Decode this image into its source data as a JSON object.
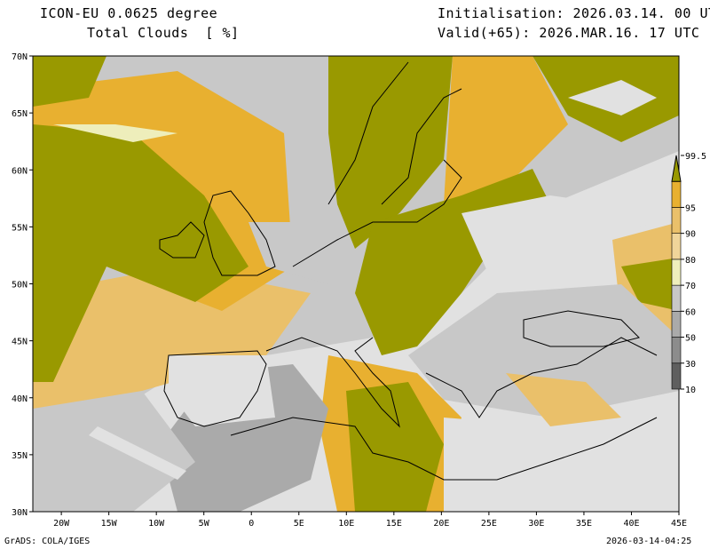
{
  "header": {
    "model": "ICON-EU 0.0625 degree",
    "variable": "Total Clouds  [ %]",
    "init": "Initialisation: 2026.03.14. 00 UTC",
    "valid": "Valid(+65): 2026.MAR.16. 17 UTC"
  },
  "axes": {
    "lon_ticks": [
      {
        "v": -20,
        "l": "20W"
      },
      {
        "v": -15,
        "l": "15W"
      },
      {
        "v": -10,
        "l": "10W"
      },
      {
        "v": -5,
        "l": "5W"
      },
      {
        "v": 0,
        "l": "0"
      },
      {
        "v": 5,
        "l": "5E"
      },
      {
        "v": 10,
        "l": "10E"
      },
      {
        "v": 15,
        "l": "15E"
      },
      {
        "v": 20,
        "l": "20E"
      },
      {
        "v": 25,
        "l": "25E"
      },
      {
        "v": 30,
        "l": "30E"
      },
      {
        "v": 35,
        "l": "35E"
      },
      {
        "v": 40,
        "l": "40E"
      },
      {
        "v": 45,
        "l": "45E"
      }
    ],
    "lat_ticks": [
      {
        "v": 30,
        "l": "30N"
      },
      {
        "v": 35,
        "l": "35N"
      },
      {
        "v": 40,
        "l": "40N"
      },
      {
        "v": 45,
        "l": "45N"
      },
      {
        "v": 50,
        "l": "50N"
      },
      {
        "v": 55,
        "l": "55N"
      },
      {
        "v": 60,
        "l": "60N"
      },
      {
        "v": 65,
        "l": "65N"
      },
      {
        "v": 70,
        "l": "70N"
      }
    ],
    "lon_range": [
      -23,
      45
    ],
    "lat_range": [
      30,
      70
    ]
  },
  "legend": {
    "levels": [
      {
        "label": "10",
        "color": "#5f5f5f"
      },
      {
        "label": "30",
        "color": "#8c8c8c"
      },
      {
        "label": "50",
        "color": "#aaaaaa"
      },
      {
        "label": "60",
        "color": "#c8c8c8"
      },
      {
        "label": "70",
        "color": "#eeeebb"
      },
      {
        "label": "80",
        "color": "#f0d59a"
      },
      {
        "label": "90",
        "color": "#eac06a"
      },
      {
        "label": "95",
        "color": "#e8b030"
      },
      {
        "label": "99.5",
        "color": "#999900"
      }
    ],
    "below_color": "#e1e1e1"
  },
  "footer": {
    "credit": "GrADS: COLA/IGES",
    "timestamp": "2026-03-14-04:25"
  }
}
